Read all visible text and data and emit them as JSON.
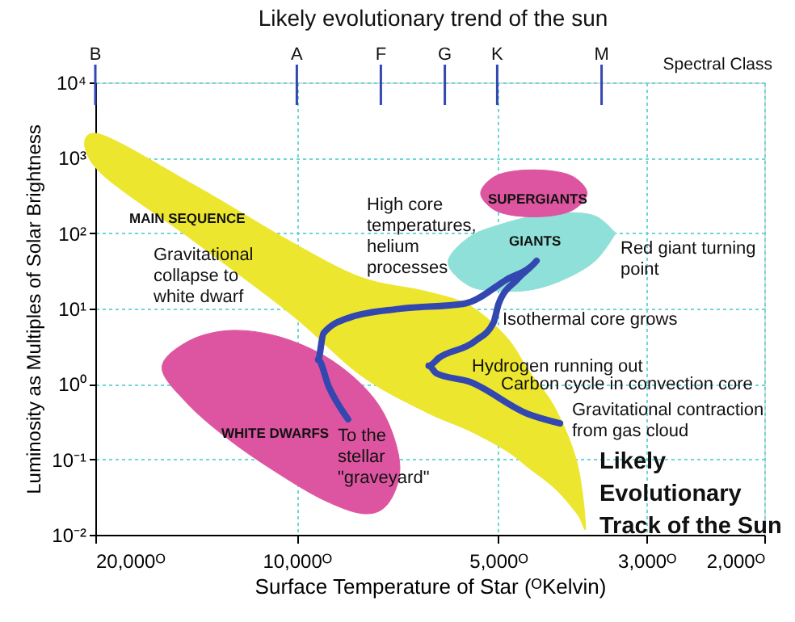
{
  "chart_data": {
    "type": "line",
    "title": "Likely evolutionary trend of the sun",
    "xlabel": "Surface Temperature of Star  (ᴼKelvin)",
    "ylabel": "Luminosity as Multiples of Solar Brightness",
    "log": "xy",
    "xlim": [
      20000,
      2000
    ],
    "ylim": [
      0.01,
      10000
    ],
    "xticks": [
      {
        "value": 20000,
        "label": "20,000ᴼ"
      },
      {
        "value": 10000,
        "label": "10,000ᴼ"
      },
      {
        "value": 5000,
        "label": "5,000ᴼ"
      },
      {
        "value": 3000,
        "label": "3,000ᴼ"
      },
      {
        "value": 2000,
        "label": "2,000ᴼ"
      }
    ],
    "yticks": [
      {
        "value": 0.01,
        "label": "10⁻²"
      },
      {
        "value": 0.1,
        "label": "10⁻¹"
      },
      {
        "value": 1,
        "label": "10⁰"
      },
      {
        "value": 10,
        "label": "10¹"
      },
      {
        "value": 100,
        "label": "10²"
      },
      {
        "value": 1000,
        "label": "10³"
      },
      {
        "value": 10000,
        "label": "10⁴"
      }
    ],
    "grid": true,
    "legend": false,
    "marker": "none",
    "line_style": "solid",
    "series": [
      {
        "name": "MAIN SEQUENCE",
        "type": "area",
        "color": "#ede62e",
        "x": [
          19900,
          14200,
          10200,
          8020,
          6430,
          5520,
          4860,
          4500,
          4110,
          3810,
          3700,
          3810,
          4110,
          4500,
          4860,
          5520,
          6430,
          8020,
          10200,
          14200,
          19900
        ],
        "values": [
          2100,
          430,
          77,
          26,
          17,
          11,
          4.2,
          1.5,
          0.48,
          0.09,
          0.0125,
          0.019,
          0.041,
          0.077,
          0.13,
          0.24,
          0.43,
          1.3,
          8.4,
          77,
          710
        ]
      },
      {
        "name": "GIANTS",
        "type": "area",
        "color": "#8fe0d8",
        "x": [
          5940,
          5520,
          4940,
          4420,
          3960,
          3580,
          3350,
          3350,
          3580,
          3960,
          4420,
          4940,
          5520
        ],
        "values": [
          41,
          89,
          132,
          169,
          187,
          169,
          104,
          94,
          43,
          25,
          18,
          17,
          20
        ]
      },
      {
        "name": "SUPERGIANTS",
        "type": "area",
        "color": "#dd55a0",
        "x": [
          5310,
          5080,
          4680,
          4190,
          3850,
          3680,
          3850,
          4190,
          4680,
          5080
        ],
        "values": [
          338,
          553,
          675,
          675,
          553,
          338,
          207,
          169,
          169,
          207
        ]
      },
      {
        "name": "WHITE DWARFS",
        "type": "area",
        "color": "#dd55a0",
        "x": [
          15900,
          14600,
          12700,
          10800,
          9120,
          7930,
          7300,
          7010,
          7300,
          7930,
          9120,
          10800,
          12700,
          14600
        ],
        "values": [
          1.64,
          3.6,
          5.1,
          4.4,
          2.4,
          0.91,
          0.31,
          0.077,
          0.026,
          0.019,
          0.029,
          0.07,
          0.19,
          0.56
        ]
      },
      {
        "color": "#3347b0",
        "x": [
          4040,
          4510,
          5520,
          6180,
          6350,
          6120,
          5420,
          5080,
          4990,
          4680,
          4380,
          4850,
          5620,
          7030,
          8300,
          9120,
          9290,
          8950,
          8380
        ],
        "values": [
          0.3,
          0.4,
          1.07,
          1.38,
          1.75,
          2.24,
          3.67,
          6.5,
          11.6,
          24.4,
          43,
          24.4,
          11.6,
          9.9,
          7.7,
          4.7,
          2.1,
          0.91,
          0.34
        ]
      }
    ],
    "annotations": [
      "B",
      "A",
      "F",
      "G",
      "K",
      "M",
      "Spectral Class",
      "High core\ntemperatures,\nhelium\nprocesses",
      "Red giant turning\npoint",
      "Isothermal core grows",
      "Hydrogen running out",
      "Carbon cycle in convection core",
      "Gravitational contraction\nfrom gas cloud",
      "Gravitational\ncollapse to\nwhite dwarf",
      "To the\nstellar\n\"graveyard\"",
      "Likely\nEvolutionary\nTrack of the Sun"
    ]
  }
}
